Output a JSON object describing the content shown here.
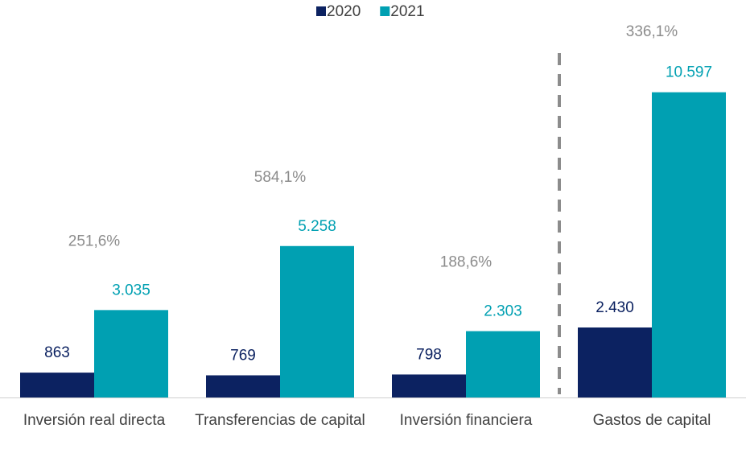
{
  "chart_data": {
    "type": "bar",
    "categories": [
      "Inversión real directa",
      "Transferencias de capital",
      "Inversión financiera",
      "Gastos de capital"
    ],
    "series": [
      {
        "name": "2020",
        "color": "#0c2261",
        "values": [
          863,
          769,
          798,
          2430
        ],
        "value_labels": [
          "863",
          "769",
          "798",
          "2.430"
        ]
      },
      {
        "name": "2021",
        "color": "#00a0b2",
        "values": [
          3035,
          5258,
          2303,
          10597
        ],
        "value_labels": [
          "3.035",
          "5.258",
          "2.303",
          "10.597"
        ]
      }
    ],
    "annotations": [
      "251,6%",
      "584,1%",
      "188,6%",
      "336,1%"
    ],
    "ylim": [
      0,
      13800
    ],
    "legend": "top"
  }
}
